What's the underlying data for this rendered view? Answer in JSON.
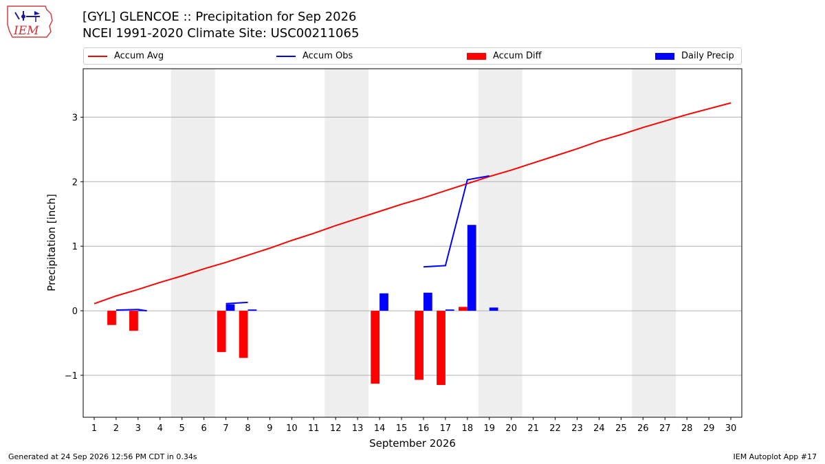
{
  "header": {
    "title_line1": "[GYL] GLENCOE :: Precipitation for Sep 2026",
    "title_line2": "NCEI 1991-2020 Climate Site: USC00211065"
  },
  "logo": {
    "text": "IEM",
    "icon": "iem-logo-icon"
  },
  "footer": {
    "left": "Generated at 24 Sep 2026 12:56 PM CDT in 0.34s",
    "right": "IEM Autoplot App #17"
  },
  "colors": {
    "avg": "#ff0000",
    "obs": "#0000ff",
    "diff": "#ff0000",
    "daily": "#0000ff",
    "weekend": "#eeeeee",
    "grid": "#b0b0b0"
  },
  "legend": [
    {
      "label": "Accum Avg",
      "kind": "line",
      "color": "#ff0000"
    },
    {
      "label": "Accum Obs",
      "kind": "line",
      "color": "#0000ff"
    },
    {
      "label": "Accum Diff",
      "kind": "box",
      "color": "#ff0000"
    },
    {
      "label": "Daily Precip",
      "kind": "box",
      "color": "#0000ff"
    }
  ],
  "chart_data": {
    "type": "bar",
    "xlabel": "September 2026",
    "ylabel": "Precipitation [inch]",
    "xlim": [
      0.5,
      30.5
    ],
    "ylim": [
      -1.65,
      3.75
    ],
    "yticks": [
      -1,
      0,
      1,
      2,
      3
    ],
    "ytick_labels": [
      "−1",
      "0",
      "1",
      "2",
      "3"
    ],
    "days": [
      1,
      2,
      3,
      4,
      5,
      6,
      7,
      8,
      9,
      10,
      11,
      12,
      13,
      14,
      15,
      16,
      17,
      18,
      19,
      20,
      21,
      22,
      23,
      24,
      25,
      26,
      27,
      28,
      29,
      30
    ],
    "weekend_spans": [
      [
        5,
        6
      ],
      [
        12,
        13
      ],
      [
        19,
        20
      ],
      [
        26,
        27
      ]
    ],
    "grid": "y",
    "series": [
      {
        "name": "Accum Avg",
        "type": "line",
        "x": [
          1,
          2,
          3,
          4,
          5,
          6,
          7,
          8,
          9,
          10,
          11,
          12,
          13,
          14,
          15,
          16,
          17,
          18,
          19,
          20,
          21,
          22,
          23,
          24,
          25,
          26,
          27,
          28,
          29,
          30
        ],
        "values": [
          0.11,
          0.23,
          0.33,
          0.44,
          0.54,
          0.65,
          0.75,
          0.86,
          0.97,
          1.09,
          1.2,
          1.32,
          1.43,
          1.54,
          1.65,
          1.75,
          1.86,
          1.97,
          2.08,
          2.18,
          2.29,
          2.4,
          2.51,
          2.63,
          2.73,
          2.84,
          2.94,
          3.04,
          3.13,
          3.22
        ]
      },
      {
        "name": "Accum Obs",
        "type": "line",
        "segments": [
          {
            "x": [
              2,
              3,
              3.4
            ],
            "values": [
              0.01,
              0.02,
              0.0
            ]
          },
          {
            "x": [
              7,
              8
            ],
            "values": [
              0.11,
              0.13
            ]
          },
          {
            "x": [
              16,
              17,
              18,
              19
            ],
            "values": [
              0.68,
              0.7,
              2.03,
              2.09
            ]
          }
        ]
      },
      {
        "name": "Accum Diff",
        "type": "bar",
        "x": [
          2,
          3,
          7,
          8,
          14,
          16,
          17,
          18
        ],
        "values": [
          -0.22,
          -0.31,
          -0.64,
          -0.73,
          -1.13,
          -1.07,
          -1.15,
          0.06
        ]
      },
      {
        "name": "Daily Precip",
        "type": "bar",
        "x": [
          3,
          7,
          8,
          14,
          16,
          17,
          18,
          19
        ],
        "values": [
          0.005,
          0.1,
          0.02,
          0.27,
          0.28,
          0.02,
          1.33,
          0.05
        ]
      }
    ]
  }
}
